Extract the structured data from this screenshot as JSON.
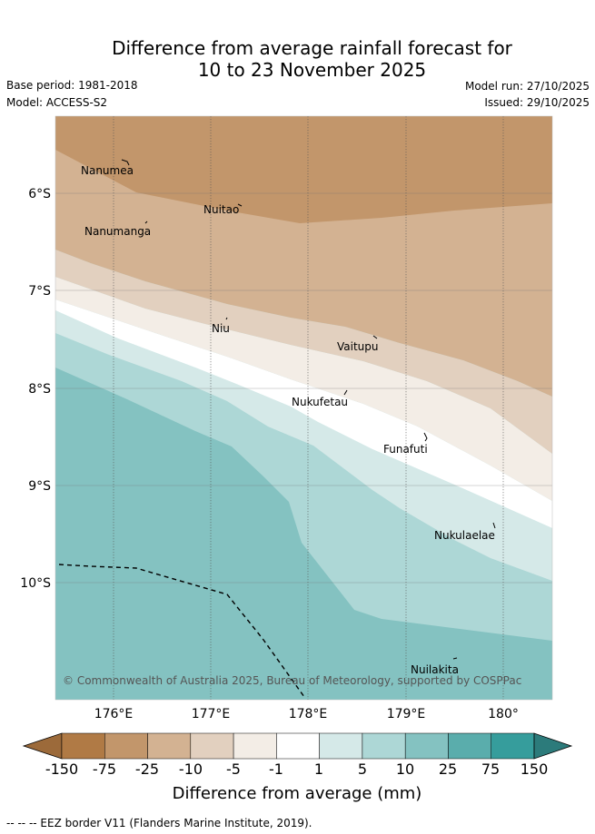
{
  "title": {
    "line1": "Difference from average rainfall forecast for",
    "line2": "10 to 23 November 2025"
  },
  "meta": {
    "base_period": "Base period: 1981-2018",
    "model": "Model: ACCESS-S2",
    "model_run": "Model run: 27/10/2025",
    "issued": "Issued: 29/10/2025"
  },
  "map": {
    "lon_labels": [
      "176°E",
      "177°E",
      "178°E",
      "179°E",
      "180°"
    ],
    "lat_labels": [
      "6°S",
      "7°S",
      "8°S",
      "9°S",
      "10°S"
    ],
    "places": [
      "Nanumea",
      "Nuitao",
      "Nanumanga",
      "Niu",
      "Vaitupu",
      "Nukufetau",
      "Funafuti",
      "Nukulaelae",
      "Nuilakita"
    ],
    "copyright": "© Commonwealth of Australia 2025, Bureau of Meteorology, supported by COSPPac"
  },
  "colorbar": {
    "ticks": [
      "-150",
      "-75",
      "-25",
      "-10",
      "-5",
      "-1",
      "1",
      "5",
      "10",
      "25",
      "75",
      "150"
    ],
    "colors": [
      "#9c6a3a",
      "#b07a45",
      "#c2966b",
      "#d3b292",
      "#e2d0bf",
      "#f3ede6",
      "#ffffff",
      "#d5e9e8",
      "#add7d6",
      "#84c2c1",
      "#5aadac",
      "#369d9c",
      "#2c7b7b"
    ],
    "label": "Difference from average (mm)"
  },
  "footer": "--  --  -- EEZ border V11 (Flanders Marine Institute, 2019)."
}
